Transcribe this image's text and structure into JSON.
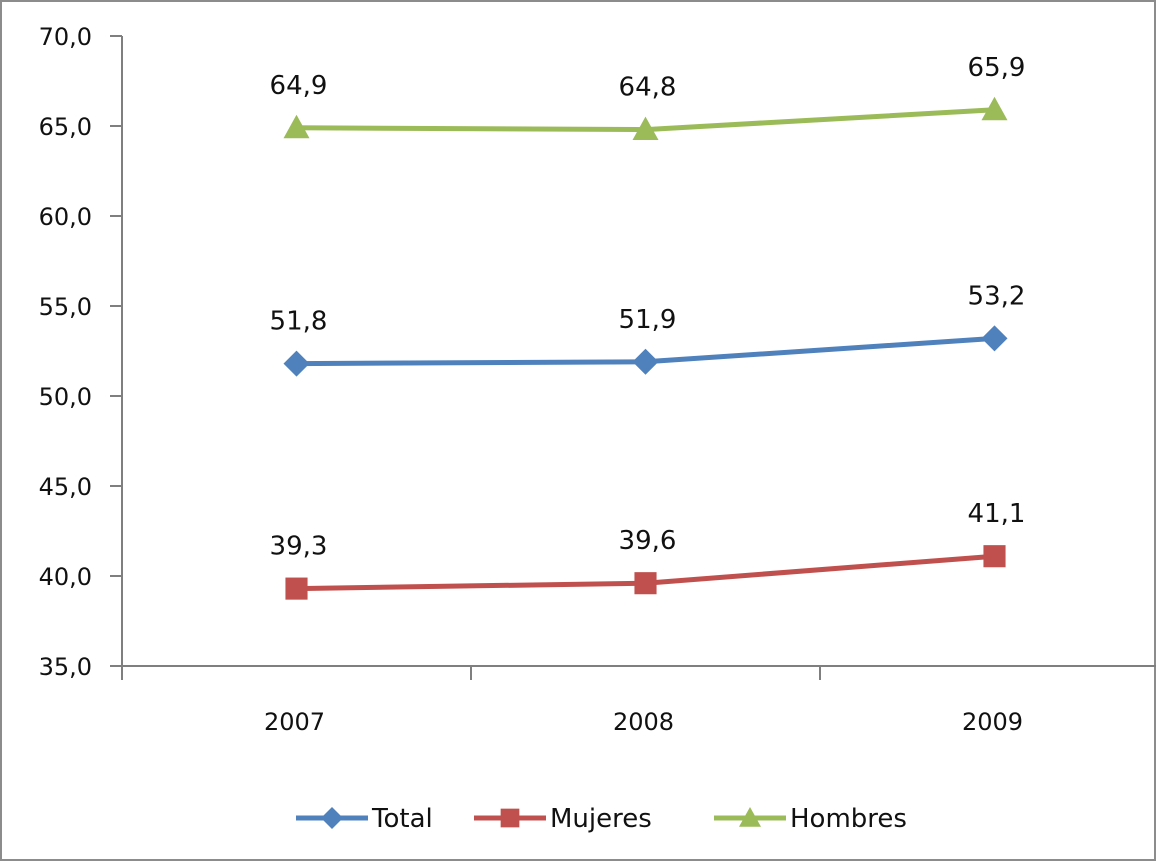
{
  "chart_data": {
    "type": "line",
    "categories": [
      "2007",
      "2008",
      "2009"
    ],
    "ylim": [
      35.0,
      70.0
    ],
    "yticks": [
      "35,0",
      "40,0",
      "45,0",
      "50,0",
      "55,0",
      "60,0",
      "65,0",
      "70,0"
    ],
    "grid": false,
    "legend_position": "bottom",
    "series": [
      {
        "name": "Total",
        "color": "#4f81bd",
        "marker": "diamond",
        "values": [
          51.8,
          51.9,
          53.2
        ],
        "labels": [
          "51,8",
          "51,9",
          "53,2"
        ]
      },
      {
        "name": "Mujeres",
        "color": "#c0504d",
        "marker": "square",
        "values": [
          39.3,
          39.6,
          41.1
        ],
        "labels": [
          "39,3",
          "39,6",
          "41,1"
        ]
      },
      {
        "name": "Hombres",
        "color": "#9bbb59",
        "marker": "triangle",
        "values": [
          64.9,
          64.8,
          65.9
        ],
        "labels": [
          "64,9",
          "64,8",
          "65,9"
        ]
      }
    ]
  }
}
